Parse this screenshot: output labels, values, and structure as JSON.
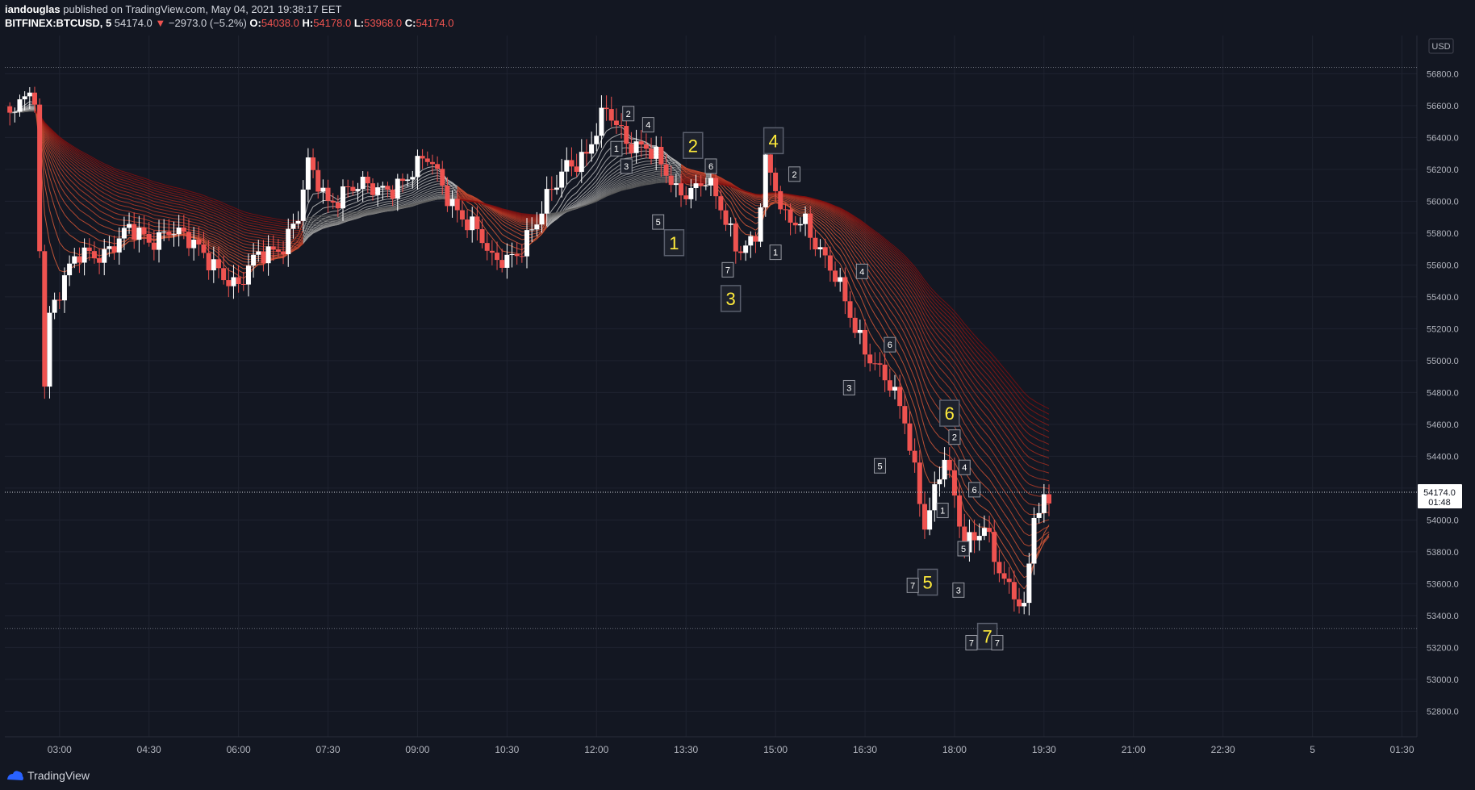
{
  "header": {
    "author": "iandouglas",
    "published": "published on TradingView.com, May 04, 2021 19:38:17 EET",
    "symbol": "BITFINEX:BTCUSD, 5",
    "last": "54174.0",
    "arrow": "▼",
    "change": "−2973.0 (−5.2%)",
    "o_label": "O:",
    "o": "54038.0",
    "h_label": "H:",
    "h": "54178.0",
    "l_label": "L:",
    "l": "53968.0",
    "c_label": "C:",
    "c": "54174.0"
  },
  "price_label": {
    "value": "54174.0",
    "countdown": "01:48"
  },
  "footer": {
    "brand": "TradingView"
  },
  "colors": {
    "background": "#131722",
    "grid": "#1f2330",
    "up": "#ffffff",
    "down": "#ef5350",
    "ribbon_warm": "#d04a3a",
    "ribbon_dark": "#9b1a1a",
    "ribbon_gray": "#9e9e9e",
    "label_yellow": "#ffeb3b",
    "label_border": "#5a5f6d"
  },
  "chart_data": {
    "type": "candlestick",
    "currency": "USD",
    "y_ticks": [
      "56800.0",
      "56600.0",
      "56400.0",
      "56200.0",
      "56000.0",
      "55800.0",
      "55600.0",
      "55400.0",
      "55200.0",
      "55000.0",
      "54800.0",
      "54600.0",
      "54400.0",
      "54200.0",
      "54000.0",
      "53800.0",
      "53600.0",
      "53400.0",
      "53200.0",
      "53000.0",
      "52800.0"
    ],
    "x_ticks": [
      "03:00",
      "04:30",
      "06:00",
      "07:30",
      "09:00",
      "10:30",
      "12:00",
      "13:30",
      "15:00",
      "16:30",
      "18:00",
      "19:30",
      "21:00",
      "22:30",
      "5",
      "01:30"
    ],
    "ylim": [
      52640,
      57040
    ],
    "session_high": 56840,
    "session_low": 53320,
    "last_price": 54174.0,
    "series": [
      {
        "x": "02:15",
        "y": 56500
      },
      {
        "x": "02:25",
        "y": 56700
      },
      {
        "x": "02:35",
        "y": 56600
      },
      {
        "x": "02:45",
        "y": 54900
      },
      {
        "x": "02:50",
        "y": 55300
      },
      {
        "x": "03:05",
        "y": 55500
      },
      {
        "x": "03:20",
        "y": 55650
      },
      {
        "x": "03:45",
        "y": 55700
      },
      {
        "x": "04:10",
        "y": 55800
      },
      {
        "x": "04:30",
        "y": 55750
      },
      {
        "x": "04:50",
        "y": 55850
      },
      {
        "x": "05:15",
        "y": 55700
      },
      {
        "x": "05:40",
        "y": 55600
      },
      {
        "x": "06:00",
        "y": 55450
      },
      {
        "x": "06:20",
        "y": 55650
      },
      {
        "x": "06:45",
        "y": 55750
      },
      {
        "x": "07:00",
        "y": 55900
      },
      {
        "x": "07:10",
        "y": 56200
      },
      {
        "x": "07:30",
        "y": 56000
      },
      {
        "x": "07:50",
        "y": 56100
      },
      {
        "x": "08:20",
        "y": 56050
      },
      {
        "x": "08:45",
        "y": 56150
      },
      {
        "x": "09:10",
        "y": 56250
      },
      {
        "x": "09:30",
        "y": 56050
      },
      {
        "x": "10:00",
        "y": 55800
      },
      {
        "x": "10:15",
        "y": 55600
      },
      {
        "x": "10:40",
        "y": 55700
      },
      {
        "x": "11:00",
        "y": 55850
      },
      {
        "x": "11:30",
        "y": 56250
      },
      {
        "x": "11:50",
        "y": 56300
      },
      {
        "x": "12:10",
        "y": 56550
      },
      {
        "x": "12:30",
        "y": 56400
      },
      {
        "x": "12:50",
        "y": 56350
      },
      {
        "x": "13:20",
        "y": 56050
      },
      {
        "x": "13:50",
        "y": 56150
      },
      {
        "x": "14:20",
        "y": 55700
      },
      {
        "x": "14:40",
        "y": 55800
      },
      {
        "x": "14:50",
        "y": 56250
      },
      {
        "x": "15:10",
        "y": 55850
      },
      {
        "x": "15:30",
        "y": 55900
      },
      {
        "x": "16:00",
        "y": 55500
      },
      {
        "x": "16:20",
        "y": 55200
      },
      {
        "x": "16:50",
        "y": 54900
      },
      {
        "x": "17:10",
        "y": 54600
      },
      {
        "x": "17:30",
        "y": 54000
      },
      {
        "x": "17:50",
        "y": 54400
      },
      {
        "x": "18:10",
        "y": 53800
      },
      {
        "x": "18:30",
        "y": 54000
      },
      {
        "x": "18:50",
        "y": 53600
      },
      {
        "x": "19:10",
        "y": 53400
      },
      {
        "x": "19:20",
        "y": 54050
      },
      {
        "x": "19:35",
        "y": 54174
      }
    ],
    "wave_labels": [
      {
        "text": "1",
        "x": "13:18",
        "y": 55740,
        "big": true
      },
      {
        "text": "2",
        "x": "13:37",
        "y": 56350,
        "big": true
      },
      {
        "text": "3",
        "x": "14:15",
        "y": 55390,
        "big": true
      },
      {
        "text": "4",
        "x": "14:58",
        "y": 56380,
        "big": true
      },
      {
        "text": "5",
        "x": "17:33",
        "y": 53610,
        "big": true
      },
      {
        "text": "6",
        "x": "17:55",
        "y": 54670,
        "big": true
      },
      {
        "text": "7",
        "x": "18:33",
        "y": 53270,
        "big": true
      },
      {
        "text": "2",
        "x": "12:32",
        "y": 56550
      },
      {
        "text": "4",
        "x": "12:52",
        "y": 56480
      },
      {
        "text": "1",
        "x": "12:20",
        "y": 56330
      },
      {
        "text": "3",
        "x": "12:30",
        "y": 56220
      },
      {
        "text": "6",
        "x": "13:55",
        "y": 56220
      },
      {
        "text": "5",
        "x": "13:02",
        "y": 55870
      },
      {
        "text": "7",
        "x": "14:12",
        "y": 55570
      },
      {
        "text": "2",
        "x": "15:19",
        "y": 56170
      },
      {
        "text": "1",
        "x": "15:00",
        "y": 55680
      },
      {
        "text": "4",
        "x": "16:27",
        "y": 55560
      },
      {
        "text": "6",
        "x": "16:55",
        "y": 55100
      },
      {
        "text": "3",
        "x": "16:14",
        "y": 54830
      },
      {
        "text": "5",
        "x": "16:45",
        "y": 54340
      },
      {
        "text": "2",
        "x": "18:00",
        "y": 54520
      },
      {
        "text": "4",
        "x": "18:10",
        "y": 54330
      },
      {
        "text": "6",
        "x": "18:20",
        "y": 54190
      },
      {
        "text": "1",
        "x": "17:48",
        "y": 54060
      },
      {
        "text": "5",
        "x": "18:09",
        "y": 53820
      },
      {
        "text": "3",
        "x": "18:04",
        "y": 53560
      },
      {
        "text": "7",
        "x": "17:18",
        "y": 53590
      },
      {
        "text": "7",
        "x": "18:17",
        "y": 53230
      },
      {
        "text": "7",
        "x": "18:43",
        "y": 53230
      }
    ]
  }
}
